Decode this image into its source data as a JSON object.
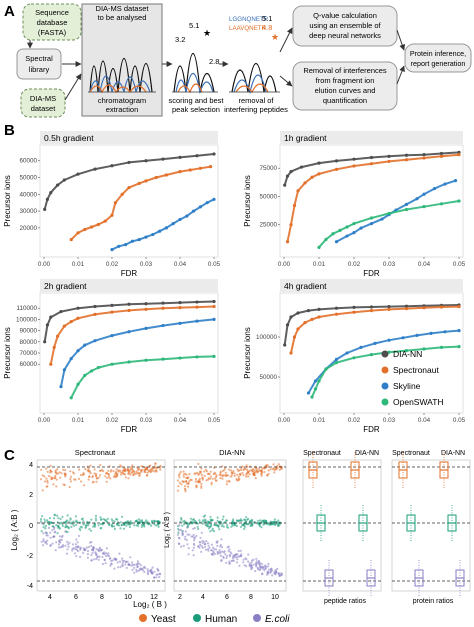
{
  "panel_labels": {
    "a": "A",
    "b": "B",
    "c": "C"
  },
  "workflow": {
    "sequence_db": [
      "Sequence",
      "database",
      "(FASTA)"
    ],
    "spectral_library": [
      "Spectral",
      "library"
    ],
    "dia_ms_dataset": [
      "DIA-MS",
      "dataset"
    ],
    "analysed_title": [
      "DIA-MS dataset",
      "to be analysed"
    ],
    "chromatogram_caption": [
      "chromatogram",
      "extraction"
    ],
    "scoring_caption": [
      "scoring and best",
      "peak selection"
    ],
    "removal_caption": [
      "removal of",
      "interfering peptides"
    ],
    "peak_scores": [
      "3.2",
      "5.1",
      "2.8"
    ],
    "peptide_seq_1": "LGGNQNETR",
    "peptide_seq_2": "LAAVQNETR",
    "peptide_score_1": "5.1",
    "peptide_score_2": "4.8",
    "qvalue_box": [
      "Q-value calculation",
      "using an ensemble of",
      "deep neural networks"
    ],
    "interference_box": [
      "Removal of interferences",
      "from fragment ion",
      "elution curves and",
      "quantification"
    ],
    "protein_box": [
      "Protein inference,",
      "report generation"
    ],
    "colors": {
      "green_box": "#e4efd8",
      "gray_box": "#ececec",
      "black_peak": "#111111",
      "blue_peak": "#3b6fb6",
      "orange_peak": "#e3702a"
    }
  },
  "fdr_panels": {
    "titles": [
      "0.5h gradient",
      "1h gradient",
      "2h gradient",
      "4h gradient"
    ],
    "xlabel": "FDR",
    "ylabel": "Precursor ions",
    "x_ticks": [
      "0.00",
      "0.01",
      "0.02",
      "0.03",
      "0.04",
      "0.05"
    ],
    "y_ticks": [
      [
        "20000",
        "30000",
        "40000",
        "50000",
        "60000"
      ],
      [
        "25000",
        "50000",
        "75000"
      ],
      [
        "90000",
        "100000",
        "110000",
        "60000",
        "70000",
        "80000"
      ],
      [
        "50000",
        "100000"
      ]
    ],
    "legend": [
      "DIA-NN",
      "Spectronaut",
      "Skyline",
      "OpenSWATH"
    ],
    "colors": {
      "DIA-NN": "#4d4d4d",
      "Spectronaut": "#e3702a",
      "Skyline": "#2f7fc8",
      "OpenSWATH": "#2db87a"
    }
  },
  "ratio_panels": {
    "scatter_titles": [
      "Spectronaut",
      "DIA-NN"
    ],
    "ylabel": "Log₂ ( A:B )",
    "xlabel": "Log₂ ( B )",
    "y_ticks": [
      "4",
      "2",
      "0",
      "-2",
      "-4"
    ],
    "x_ticks_left": [
      "4",
      "6",
      "8",
      "10",
      "12"
    ],
    "x_ticks_mid": [
      "2",
      "4",
      "6",
      "8",
      "10"
    ],
    "box_titles": [
      "Spectronaut",
      "DIA-NN",
      "Spectronaut",
      "DIA-NN"
    ],
    "box_captions": [
      "peptide ratios",
      "protein ratios"
    ],
    "legend": [
      "Yeast",
      "Human",
      "E.coli"
    ],
    "colors": {
      "Yeast": "#e3702a",
      "Human": "#1a9c7a",
      "E.coli": "#8a7fc4"
    }
  },
  "chart_data": [
    {
      "type": "scatter",
      "title": "0.5h gradient",
      "xlabel": "FDR",
      "ylabel": "Precursor ions",
      "xlim": [
        0,
        0.05
      ],
      "ylim": [
        5000,
        67000
      ],
      "series": [
        {
          "name": "DIA-NN",
          "x": [
            0.0002,
            0.001,
            0.002,
            0.004,
            0.006,
            0.01,
            0.015,
            0.02,
            0.025,
            0.03,
            0.035,
            0.04,
            0.045,
            0.05
          ],
          "y": [
            31000,
            37000,
            41000,
            45500,
            48500,
            52000,
            55000,
            57000,
            59000,
            60000,
            61000,
            62000,
            63000,
            64000
          ]
        },
        {
          "name": "Spectronaut",
          "x": [
            0.008,
            0.01,
            0.012,
            0.014,
            0.016,
            0.018,
            0.02,
            0.021,
            0.023,
            0.025,
            0.028,
            0.03,
            0.033,
            0.036,
            0.04,
            0.043,
            0.046,
            0.049
          ],
          "y": [
            13000,
            17000,
            19000,
            20500,
            22000,
            24000,
            27500,
            35000,
            40000,
            44000,
            46500,
            48000,
            50000,
            51500,
            53500,
            54500,
            55500,
            56500
          ]
        },
        {
          "name": "Skyline",
          "x": [
            0.02,
            0.022,
            0.024,
            0.026,
            0.028,
            0.03,
            0.032,
            0.034,
            0.036,
            0.038,
            0.04,
            0.042,
            0.044,
            0.046,
            0.048,
            0.05
          ],
          "y": [
            7000,
            9000,
            10000,
            12000,
            13000,
            14500,
            16000,
            18000,
            20000,
            22500,
            25000,
            27000,
            30000,
            32500,
            35000,
            37000
          ]
        }
      ]
    },
    {
      "type": "scatter",
      "title": "1h gradient",
      "xlabel": "FDR",
      "ylabel": "Precursor ions",
      "xlim": [
        0,
        0.05
      ],
      "ylim": [
        0,
        92000
      ],
      "series": [
        {
          "name": "DIA-NN",
          "x": [
            0.0002,
            0.001,
            0.002,
            0.005,
            0.01,
            0.015,
            0.02,
            0.025,
            0.03,
            0.035,
            0.04,
            0.045,
            0.05
          ],
          "y": [
            60000,
            68000,
            72000,
            76000,
            79500,
            81500,
            83000,
            84500,
            85500,
            86500,
            87000,
            88000,
            89000
          ]
        },
        {
          "name": "Spectronaut",
          "x": [
            0.001,
            0.002,
            0.003,
            0.004,
            0.006,
            0.008,
            0.01,
            0.015,
            0.02,
            0.025,
            0.03,
            0.035,
            0.04,
            0.045,
            0.05
          ],
          "y": [
            10000,
            25000,
            42000,
            55000,
            62000,
            67000,
            70000,
            74000,
            77000,
            79000,
            81000,
            82500,
            84000,
            85500,
            87000
          ]
        },
        {
          "name": "Skyline",
          "x": [
            0.015,
            0.018,
            0.02,
            0.022,
            0.025,
            0.028,
            0.03,
            0.032,
            0.035,
            0.038,
            0.04,
            0.043,
            0.046,
            0.049
          ],
          "y": [
            10000,
            15000,
            18000,
            22000,
            26000,
            30000,
            34000,
            38000,
            43000,
            48000,
            52000,
            57000,
            61000,
            64000
          ]
        },
        {
          "name": "OpenSWATH",
          "x": [
            0.01,
            0.012,
            0.014,
            0.016,
            0.018,
            0.02,
            0.025,
            0.03,
            0.035,
            0.04,
            0.045,
            0.05
          ],
          "y": [
            5000,
            12000,
            17000,
            20000,
            23000,
            26000,
            31000,
            35000,
            38500,
            41000,
            43500,
            46000
          ]
        }
      ]
    },
    {
      "type": "scatter",
      "title": "2h gradient",
      "xlabel": "FDR",
      "ylabel": "Precursor ions",
      "xlim": [
        0,
        0.05
      ],
      "ylim": [
        20000,
        120000
      ],
      "series": [
        {
          "name": "DIA-NN",
          "x": [
            0.0002,
            0.001,
            0.002,
            0.005,
            0.01,
            0.015,
            0.02,
            0.025,
            0.03,
            0.035,
            0.04,
            0.045,
            0.05
          ],
          "y": [
            80000,
            95000,
            102000,
            107000,
            110000,
            111500,
            112500,
            113500,
            114000,
            114500,
            115000,
            115500,
            116000
          ]
        },
        {
          "name": "Spectronaut",
          "x": [
            0.002,
            0.003,
            0.004,
            0.006,
            0.008,
            0.01,
            0.015,
            0.02,
            0.025,
            0.03,
            0.035,
            0.04,
            0.045,
            0.05
          ],
          "y": [
            60000,
            75000,
            85000,
            94000,
            98000,
            101000,
            104500,
            106500,
            108000,
            109000,
            110000,
            110500,
            111000,
            111500
          ]
        },
        {
          "name": "Skyline",
          "x": [
            0.005,
            0.006,
            0.008,
            0.01,
            0.012,
            0.015,
            0.02,
            0.025,
            0.03,
            0.035,
            0.04,
            0.045,
            0.05
          ],
          "y": [
            40000,
            55000,
            65000,
            72000,
            77000,
            81000,
            85500,
            89000,
            92000,
            94500,
            96500,
            98500,
            100000
          ]
        },
        {
          "name": "OpenSWATH",
          "x": [
            0.008,
            0.01,
            0.012,
            0.014,
            0.016,
            0.02,
            0.025,
            0.03,
            0.035,
            0.04,
            0.045,
            0.05
          ],
          "y": [
            30000,
            42000,
            50000,
            54000,
            57000,
            60000,
            62000,
            63500,
            64500,
            65500,
            66500,
            67000
          ]
        }
      ]
    },
    {
      "type": "scatter",
      "title": "4h gradient",
      "xlabel": "FDR",
      "ylabel": "Precursor ions",
      "xlim": [
        0,
        0.05
      ],
      "ylim": [
        10000,
        150000
      ],
      "series": [
        {
          "name": "DIA-NN",
          "x": [
            0.0002,
            0.001,
            0.002,
            0.004,
            0.007,
            0.01,
            0.015,
            0.02,
            0.025,
            0.03,
            0.035,
            0.04,
            0.045,
            0.05
          ],
          "y": [
            90000,
            115000,
            125000,
            130000,
            133000,
            134500,
            136000,
            137000,
            137500,
            138000,
            138500,
            139000,
            139500,
            140000
          ]
        },
        {
          "name": "Spectronaut",
          "x": [
            0.002,
            0.003,
            0.004,
            0.006,
            0.008,
            0.01,
            0.015,
            0.02,
            0.025,
            0.03,
            0.035,
            0.04,
            0.045,
            0.05
          ],
          "y": [
            80000,
            100000,
            110000,
            118000,
            122000,
            125000,
            128500,
            131000,
            133000,
            134500,
            135500,
            136500,
            137500,
            138000
          ]
        },
        {
          "name": "Skyline",
          "x": [
            0.007,
            0.009,
            0.012,
            0.015,
            0.018,
            0.022,
            0.026,
            0.03,
            0.034,
            0.038,
            0.042,
            0.046,
            0.05
          ],
          "y": [
            30000,
            45000,
            60000,
            72000,
            80000,
            87000,
            92000,
            96000,
            99000,
            102000,
            104500,
            106500,
            108000
          ]
        },
        {
          "name": "OpenSWATH",
          "x": [
            0.008,
            0.009,
            0.01,
            0.012,
            0.015,
            0.02,
            0.025,
            0.03,
            0.035,
            0.04,
            0.045,
            0.05
          ],
          "y": [
            25000,
            35000,
            45000,
            60000,
            68000,
            74000,
            78000,
            81000,
            83000,
            85000,
            87000,
            88000
          ]
        }
      ]
    }
  ]
}
